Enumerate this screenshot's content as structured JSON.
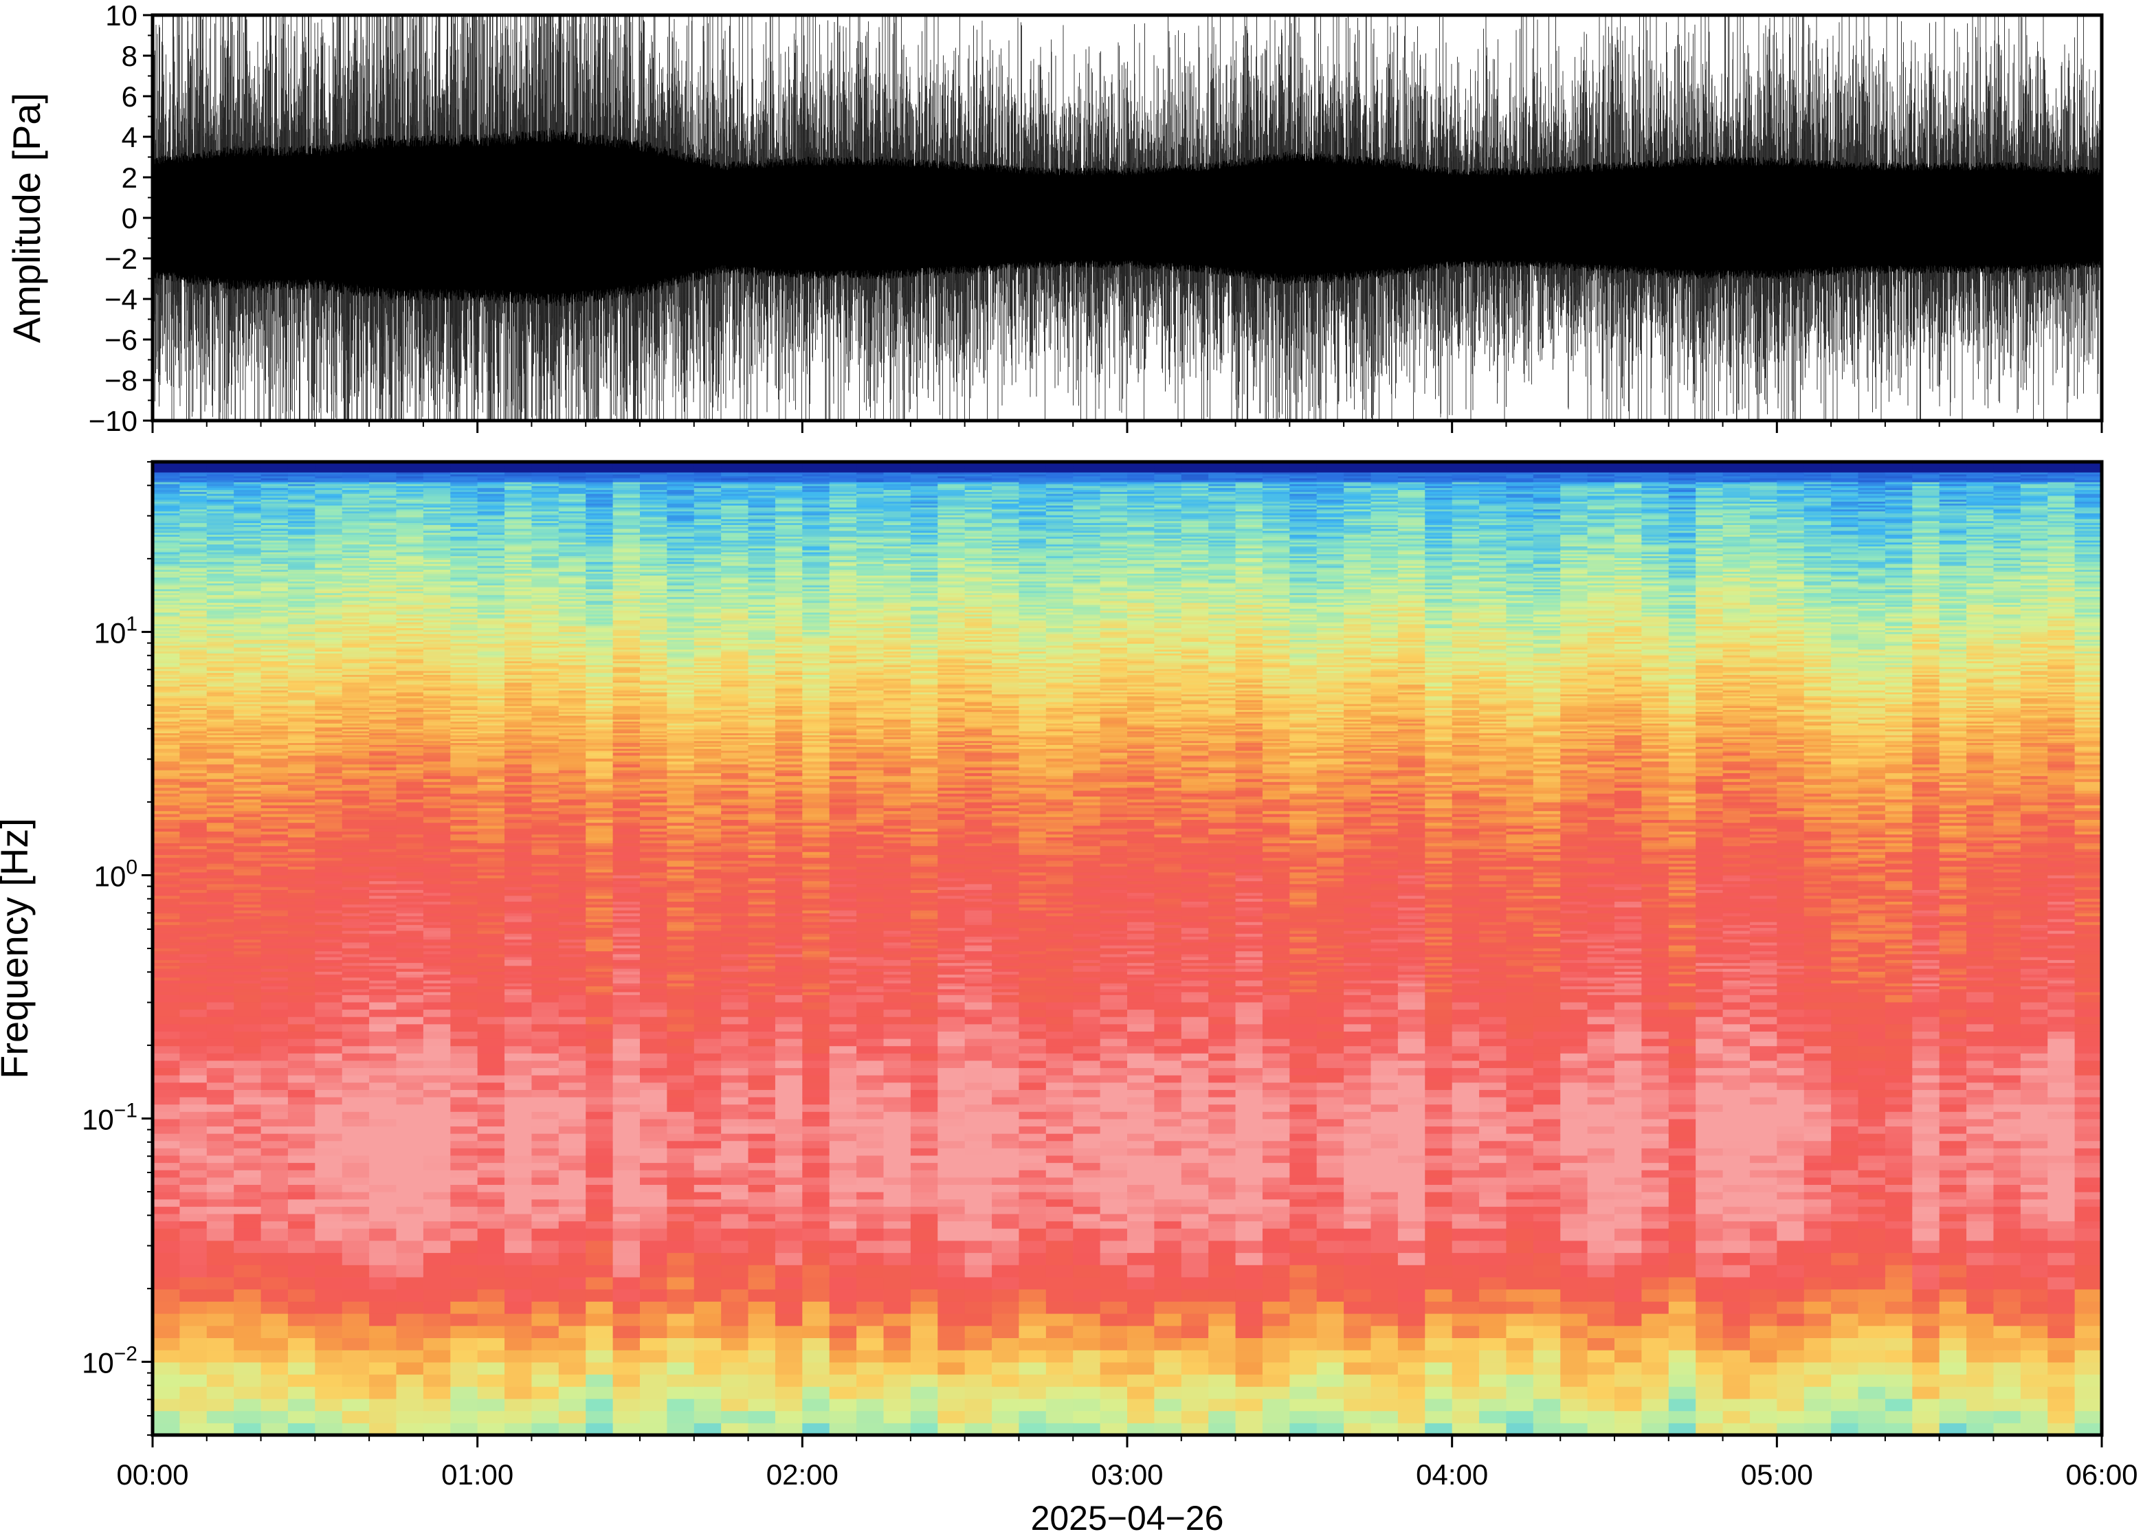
{
  "chart_data": [
    {
      "type": "line",
      "ylabel": "Amplitude [Pa]",
      "ylim": [
        -10,
        10
      ],
      "yticks": [
        -10,
        -8,
        -6,
        -4,
        -2,
        0,
        2,
        4,
        6,
        8,
        10
      ],
      "ytick_labels": [
        "−10",
        "−8",
        "−6",
        "−4",
        "−2",
        "0",
        "2",
        "4",
        "6",
        "8",
        "10"
      ],
      "xlim": [
        "2025-04-26T00:00",
        "2025-04-26T06:00"
      ],
      "series": [
        {
          "color": "#000000",
          "envelope_hours": [
            0.0,
            0.25,
            0.5,
            0.75,
            1.0,
            1.25,
            1.5,
            1.75,
            2.0,
            2.25,
            2.5,
            2.75,
            3.0,
            3.25,
            3.5,
            3.75,
            4.0,
            4.25,
            4.5,
            4.75,
            5.0,
            5.25,
            5.5,
            5.75,
            6.0
          ],
          "envelope_amplitude_pa": [
            5.5,
            6.5,
            6.5,
            7.5,
            7.5,
            8.0,
            7.0,
            5.0,
            5.5,
            5.5,
            5.0,
            4.5,
            4.5,
            5.0,
            6.0,
            5.5,
            4.5,
            4.5,
            5.0,
            5.5,
            5.5,
            5.0,
            5.0,
            5.0,
            4.5
          ]
        }
      ]
    },
    {
      "type": "heatmap",
      "ylabel": "Frequency [Hz]",
      "yscale": "log",
      "ylim": [
        0.005,
        50
      ],
      "yticks": [
        0.01,
        0.1,
        1,
        10
      ],
      "ytick_labels": [
        {
          "base": "10",
          "exp": "−2"
        },
        {
          "base": "10",
          "exp": "−1"
        },
        {
          "base": "10",
          "exp": "0"
        },
        {
          "base": "10",
          "exp": "1"
        }
      ],
      "xlim": [
        "2025-04-26T00:00",
        "2025-04-26T06:00"
      ],
      "xticks": [
        "00:00",
        "01:00",
        "02:00",
        "03:00",
        "04:00",
        "05:00",
        "06:00"
      ],
      "xlabel": "2025−04−26",
      "colormap": [
        "#0a0a80",
        "#2a6fe0",
        "#3fb8f0",
        "#8fe6c0",
        "#d8f090",
        "#fbd060",
        "#f8a048",
        "#f26050",
        "#f45a5a",
        "#f8a0a0"
      ],
      "column_minutes": 5,
      "profile_log10_hz": [
        -2.3,
        -2.0,
        -1.7,
        -1.4,
        -1.0,
        -0.5,
        0.0,
        0.5,
        1.0,
        1.4,
        1.7
      ],
      "profile_level": [
        0.38,
        0.55,
        0.8,
        0.95,
        0.98,
        0.85,
        0.8,
        0.65,
        0.45,
        0.3,
        0.2
      ]
    }
  ]
}
